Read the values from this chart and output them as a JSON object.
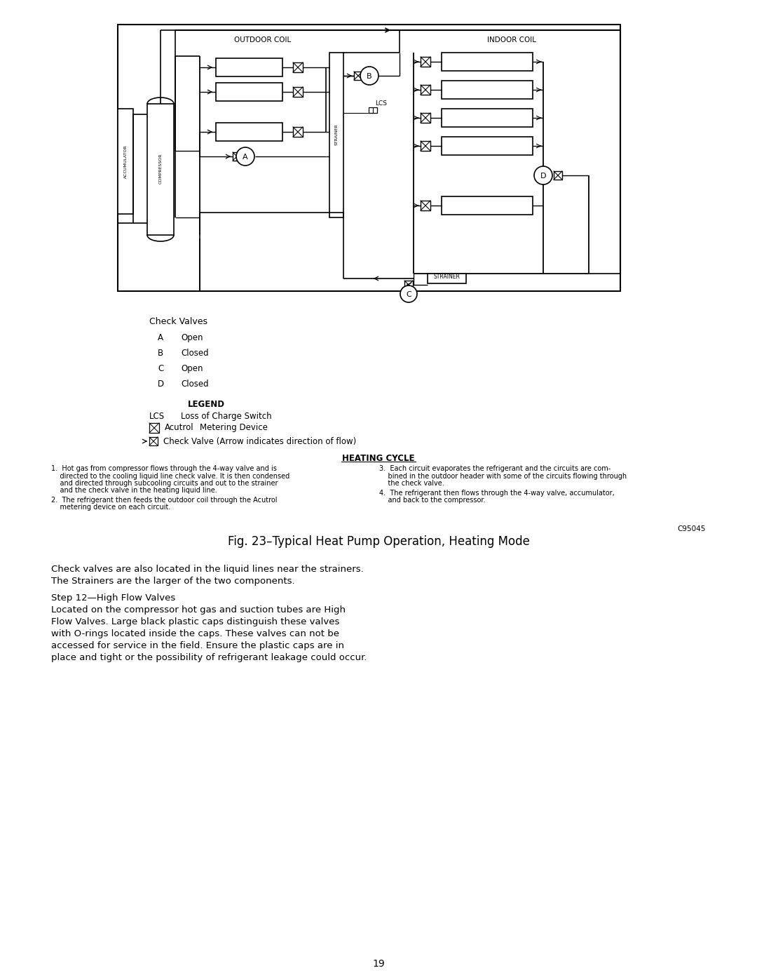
{
  "bg_color": "#ffffff",
  "page_number": "19",
  "fig_caption": "Fig. 23–Typical Heat Pump Operation, Heating Mode",
  "diagram_label_outdoor_coil": "OUTDOOR COIL",
  "diagram_label_indoor_coil": "INDOOR COIL",
  "diagram_label_accumulator": "ACCUMULATOR",
  "diagram_label_compressor": "COMPRESSOR",
  "diagram_label_strainer1": "STRAINER",
  "diagram_label_strainer2": "STRAINER",
  "diagram_label_lcs": "LCS",
  "check_valves_title": "Check Valves",
  "check_valves": [
    {
      "label": "A",
      "state": "Open"
    },
    {
      "label": "B",
      "state": "Closed"
    },
    {
      "label": "C",
      "state": "Open"
    },
    {
      "label": "D",
      "state": "Closed"
    }
  ],
  "legend_title": "LEGEND",
  "heating_cycle_title": "HEATING CYCLE",
  "hc1": "1.  Hot gas from compressor flows through the 4-way valve and is\n    directed to the cooling liquid line check valve. It is then condensed\n    and directed through subcooling circuits and out to the strainer\n    and the check valve in the heating liquid line.",
  "hc2": "2.  The refrigerant then feeds the outdoor coil through the Acutrol\n    metering device on each circuit.",
  "hc3": "3.  Each circuit evaporates the refrigerant and the circuits are com-\n    bined in the outdoor header with some of the circuits flowing through\n    the check valve.",
  "hc4": "4.  The refrigerant then flows through the 4-way valve, accumulator,\n    and back to the compressor.",
  "ref_code": "C95045",
  "para1_line1": "Check valves are also located in the liquid lines near the strainers.",
  "para1_line2": "The Strainers are the larger of the two components.",
  "step12_title": "Step 12—High Flow Valves",
  "para2_line1": "Located on the compressor hot gas and suction tubes are High",
  "para2_line2": "Flow Valves. Large black plastic caps distinguish these valves",
  "para2_line3": "with O-rings located inside the caps. These valves can not be",
  "para2_line4": "accessed for service in the field. Ensure the plastic caps are in",
  "para2_line5": "place and tight or the possibility of refrigerant leakage could occur."
}
